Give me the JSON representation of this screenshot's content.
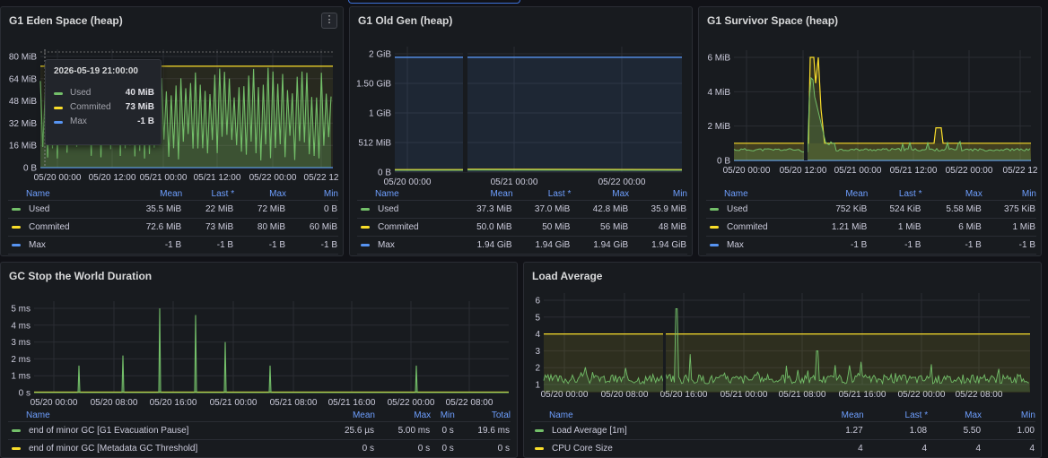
{
  "colors": {
    "green": "#73bf69",
    "yellow": "#fade2a",
    "blue": "#5794f2",
    "link": "#6e9fff"
  },
  "panels": {
    "eden": {
      "title": "G1 Eden Space (heap)",
      "menu_icon": "⋮",
      "yticks": [
        "80 MiB",
        "64 MiB",
        "48 MiB",
        "32 MiB",
        "16 MiB",
        "0 B"
      ],
      "xticks": [
        "05/20 00:00",
        "05/20 12:00",
        "05/21 00:00",
        "05/21 12:00",
        "05/22 00:00",
        "05/22 12"
      ],
      "legend": {
        "cols": [
          "Name",
          "Mean",
          "Last *",
          "Max",
          "Min"
        ],
        "rows": [
          {
            "name": "Used",
            "color": "green",
            "vals": [
              "35.5 MiB",
              "22 MiB",
              "72 MiB",
              "0 B"
            ]
          },
          {
            "name": "Commited",
            "color": "yellow",
            "vals": [
              "72.6 MiB",
              "73 MiB",
              "80 MiB",
              "60 MiB"
            ]
          },
          {
            "name": "Max",
            "color": "blue",
            "vals": [
              "-1 B",
              "-1 B",
              "-1 B",
              "-1 B"
            ]
          }
        ]
      },
      "tooltip": {
        "time": "2026-05-19 21:00:00",
        "rows": [
          {
            "label": "Used",
            "value": "40 MiB",
            "color": "green"
          },
          {
            "label": "Commited",
            "value": "73 MiB",
            "color": "yellow"
          },
          {
            "label": "Max",
            "value": "-1 B",
            "color": "blue"
          }
        ]
      }
    },
    "oldgen": {
      "title": "G1 Old Gen (heap)",
      "yticks": [
        "2 GiB",
        "1.50 GiB",
        "1 GiB",
        "512 MiB",
        "0 B"
      ],
      "xticks": [
        "05/20 00:00",
        "05/21 00:00",
        "05/22 00:00"
      ],
      "legend": {
        "cols": [
          "Name",
          "Mean",
          "Last *",
          "Max",
          "Min"
        ],
        "rows": [
          {
            "name": "Used",
            "color": "green",
            "vals": [
              "37.3 MiB",
              "37.0 MiB",
              "42.8 MiB",
              "35.9 MiB"
            ]
          },
          {
            "name": "Commited",
            "color": "yellow",
            "vals": [
              "50.0 MiB",
              "50 MiB",
              "56 MiB",
              "48 MiB"
            ]
          },
          {
            "name": "Max",
            "color": "blue",
            "vals": [
              "1.94 GiB",
              "1.94 GiB",
              "1.94 GiB",
              "1.94 GiB"
            ]
          }
        ]
      }
    },
    "survivor": {
      "title": "G1 Survivor Space (heap)",
      "yticks": [
        "6 MiB",
        "4 MiB",
        "2 MiB",
        "0 B"
      ],
      "xticks": [
        "05/20 00:00",
        "05/20 12:00",
        "05/21 00:00",
        "05/21 12:00",
        "05/22 00:00",
        "05/22 12"
      ],
      "legend": {
        "cols": [
          "Name",
          "Mean",
          "Last *",
          "Max",
          "Min"
        ],
        "rows": [
          {
            "name": "Used",
            "color": "green",
            "vals": [
              "752 KiB",
              "524 KiB",
              "5.58 MiB",
              "375 KiB"
            ]
          },
          {
            "name": "Commited",
            "color": "yellow",
            "vals": [
              "1.21 MiB",
              "1 MiB",
              "6 MiB",
              "1 MiB"
            ]
          },
          {
            "name": "Max",
            "color": "blue",
            "vals": [
              "-1 B",
              "-1 B",
              "-1 B",
              "-1 B"
            ]
          }
        ]
      }
    },
    "gc": {
      "title": "GC Stop the World Duration",
      "yticks": [
        "5 ms",
        "4 ms",
        "3 ms",
        "2 ms",
        "1 ms",
        "0 s"
      ],
      "xticks": [
        "05/20 00:00",
        "05/20 08:00",
        "05/20 16:00",
        "05/21 00:00",
        "05/21 08:00",
        "05/21 16:00",
        "05/22 00:00",
        "05/22 08:00"
      ],
      "legend": {
        "cols": [
          "Name",
          "Mean",
          "Max",
          "Min",
          "Total"
        ],
        "rows": [
          {
            "name": "end of minor GC [G1 Evacuation Pause]",
            "color": "green",
            "vals": [
              "25.6 µs",
              "5.00 ms",
              "0 s",
              "19.6 ms"
            ]
          },
          {
            "name": "end of minor GC [Metadata GC Threshold]",
            "color": "yellow",
            "vals": [
              "0 s",
              "0 s",
              "0 s",
              "0 s"
            ]
          }
        ]
      }
    },
    "load": {
      "title": "Load Average",
      "yticks": [
        "6",
        "5",
        "4",
        "3",
        "2",
        "1"
      ],
      "xticks": [
        "05/20 00:00",
        "05/20 08:00",
        "05/20 16:00",
        "05/21 00:00",
        "05/21 08:00",
        "05/21 16:00",
        "05/22 00:00",
        "05/22 08:00"
      ],
      "legend": {
        "cols": [
          "Name",
          "Mean",
          "Last *",
          "Max",
          "Min"
        ],
        "rows": [
          {
            "name": "Load Average [1m]",
            "color": "green",
            "vals": [
              "1.27",
              "1.08",
              "5.50",
              "1.00"
            ]
          },
          {
            "name": "CPU Core Size",
            "color": "yellow",
            "vals": [
              "4",
              "4",
              "4",
              "4"
            ]
          }
        ]
      }
    }
  }
}
